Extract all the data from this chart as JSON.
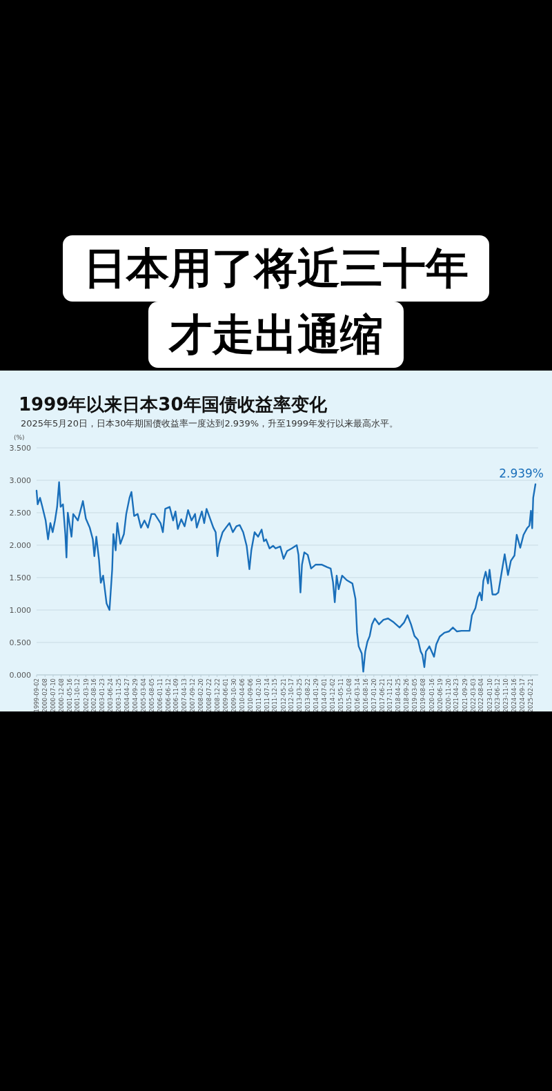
{
  "chart_data": {
    "type": "line",
    "title": "1999年以来日本30年国债收益率变化",
    "subtitle": "2025年5月20日，日本30年期国债收益率一度达到2.939%，升至1999年发行以来最高水平。",
    "ylabel": "(%)",
    "annotations": [
      "日本用了将近三十年",
      "才走出通缩",
      {
        "text": "2.939%",
        "x": "2025-05-20",
        "y": 2.939
      }
    ],
    "x": [
      "1999-09-02",
      "1999-09-23",
      "1999-11-06",
      "1999-12-20",
      "2000-02-20",
      "2000-04-05",
      "2000-05-19",
      "2000-07-01",
      "2000-08-14",
      "2000-09-23",
      "2000-10-30",
      "2000-11-28",
      "2001-01-11",
      "2001-02-24",
      "2001-03-18",
      "2001-04-12",
      "2001-06-21",
      "2001-07-23",
      "2001-10-19",
      "2002-01-22",
      "2002-03-18",
      "2002-05-30",
      "2002-07-27",
      "2002-08-25",
      "2002-10-01",
      "2002-11-21",
      "2002-12-24",
      "2003-02-06",
      "2003-04-12",
      "2003-06-06",
      "2003-07-27",
      "2003-08-18",
      "2003-10-01",
      "2003-10-30",
      "2003-12-27",
      "2004-03-03",
      "2004-04-16",
      "2004-06-17",
      "2004-07-23",
      "2004-09-12",
      "2004-11-17",
      "2005-01-18",
      "2005-03-25",
      "2005-05-30",
      "2005-08-03",
      "2005-10-04",
      "2006-01-22",
      "2006-03-07",
      "2006-04-20",
      "2006-07-12",
      "2006-09-16",
      "2006-10-30",
      "2006-12-13",
      "2007-02-16",
      "2007-04-20",
      "2007-06-24",
      "2007-08-29",
      "2007-11-03",
      "2007-12-05",
      "2008-03-10",
      "2008-04-23",
      "2008-06-06",
      "2008-08-11",
      "2008-10-12",
      "2008-11-25",
      "2008-12-27",
      "2009-01-29",
      "2009-04-05",
      "2009-06-06",
      "2009-08-11",
      "2009-10-15",
      "2009-12-20",
      "2010-02-20",
      "2010-04-27",
      "2010-07-01",
      "2010-08-22",
      "2010-09-27",
      "2010-11-28",
      "2011-02-02",
      "2011-04-09",
      "2011-05-22",
      "2011-07-01",
      "2011-09-05",
      "2011-11-10",
      "2011-12-27",
      "2012-03-25",
      "2012-05-26",
      "2012-07-31",
      "2012-10-26",
      "2013-01-29",
      "2013-03-03",
      "2013-04-09",
      "2013-05-08",
      "2013-06-21",
      "2013-08-25",
      "2013-10-26",
      "2014-01-22",
      "2014-05-11",
      "2014-08-25",
      "2014-10-30",
      "2014-12-13",
      "2015-01-15",
      "2015-02-20",
      "2015-03-29",
      "2015-06-02",
      "2015-08-29",
      "2015-12-13",
      "2016-02-09",
      "2016-03-10",
      "2016-04-09",
      "2016-06-06",
      "2016-07-05",
      "2016-08-11",
      "2016-09-20",
      "2016-11-03",
      "2016-12-16",
      "2017-02-06",
      "2017-04-27",
      "2017-07-20",
      "2017-10-15",
      "2018-01-29",
      "2018-05-19",
      "2018-08-14",
      "2018-10-15",
      "2018-12-20",
      "2019-02-24",
      "2019-04-30",
      "2019-06-21",
      "2019-07-23",
      "2019-08-29",
      "2019-09-27",
      "2019-12-02",
      "2020-01-15",
      "2020-02-27",
      "2020-04-09",
      "2020-06-13",
      "2020-09-09",
      "2020-12-02",
      "2021-02-16",
      "2021-05-04",
      "2021-07-27",
      "2021-10-23",
      "2021-12-27",
      "2022-02-09",
      "2022-04-16",
      "2022-05-30",
      "2022-07-09",
      "2022-08-14",
      "2022-09-12",
      "2022-10-26",
      "2022-12-09",
      "2023-01-07",
      "2023-03-03",
      "2023-05-08",
      "2023-06-21",
      "2023-08-25",
      "2023-10-19",
      "2023-12-20",
      "2024-02-13",
      "2024-04-20",
      "2024-06-02",
      "2024-08-07",
      "2024-10-08",
      "2024-12-13",
      "2025-01-26",
      "2025-02-24",
      "2025-03-20",
      "2025-04-08",
      "2025-05-20"
    ],
    "series": [
      {
        "color": "#1a6fba",
        "values": [
          2.84,
          2.63,
          2.73,
          2.59,
          2.38,
          2.09,
          2.34,
          2.2,
          2.38,
          2.59,
          2.97,
          2.59,
          2.63,
          2.17,
          1.81,
          2.5,
          2.13,
          2.48,
          2.38,
          2.68,
          2.41,
          2.27,
          2.09,
          1.83,
          2.13,
          1.77,
          1.42,
          1.53,
          1.1,
          1.0,
          1.63,
          2.17,
          1.92,
          2.34,
          2.02,
          2.17,
          2.48,
          2.73,
          2.82,
          2.45,
          2.48,
          2.27,
          2.38,
          2.27,
          2.48,
          2.48,
          2.34,
          2.2,
          2.56,
          2.59,
          2.38,
          2.52,
          2.25,
          2.4,
          2.29,
          2.54,
          2.38,
          2.48,
          2.27,
          2.52,
          2.34,
          2.56,
          2.41,
          2.27,
          2.2,
          1.83,
          2.02,
          2.2,
          2.27,
          2.34,
          2.2,
          2.29,
          2.31,
          2.2,
          1.99,
          1.63,
          1.92,
          2.2,
          2.13,
          2.24,
          2.06,
          2.09,
          1.95,
          1.99,
          1.95,
          1.98,
          1.79,
          1.91,
          1.95,
          2.0,
          1.85,
          1.27,
          1.7,
          1.89,
          1.85,
          1.64,
          1.7,
          1.7,
          1.66,
          1.64,
          1.43,
          1.12,
          1.53,
          1.32,
          1.53,
          1.46,
          1.41,
          1.17,
          0.65,
          0.44,
          0.33,
          0.05,
          0.36,
          0.51,
          0.6,
          0.78,
          0.87,
          0.78,
          0.85,
          0.87,
          0.81,
          0.73,
          0.81,
          0.92,
          0.78,
          0.6,
          0.54,
          0.36,
          0.31,
          0.12,
          0.36,
          0.44,
          0.36,
          0.28,
          0.47,
          0.59,
          0.65,
          0.67,
          0.73,
          0.67,
          0.68,
          0.68,
          0.68,
          0.92,
          1.03,
          1.2,
          1.27,
          1.15,
          1.45,
          1.59,
          1.41,
          1.62,
          1.24,
          1.24,
          1.27,
          1.59,
          1.86,
          1.54,
          1.76,
          1.84,
          2.16,
          1.96,
          2.16,
          2.26,
          2.3,
          2.53,
          2.26,
          2.73,
          2.939
        ]
      }
    ],
    "xlim": [
      "1999-09-02",
      "2025-05-20"
    ],
    "xticks": [
      "1999-09-02",
      "2000-02-08",
      "2000-07-10",
      "2000-12-08",
      "2001-05-16",
      "2001-10-12",
      "2002-03-19",
      "2002-08-16",
      "2003-01-23",
      "2003-06-24",
      "2003-11-25",
      "2004-04-27",
      "2004-09-29",
      "2005-03-04",
      "2005-08-05",
      "2006-01-11",
      "2006-06-12",
      "2006-11-09",
      "2007-04-13",
      "2007-09-12",
      "2008-02-20",
      "2008-07-22",
      "2008-12-22",
      "2009-06-01",
      "2009-10-30",
      "2010-04-06",
      "2010-09-06",
      "2011-02-10",
      "2011-07-14",
      "2011-12-15",
      "2012-05-21",
      "2012-10-17",
      "2013-03-25",
      "2013-08-22",
      "2014-01-29",
      "2014-07-01",
      "2014-12-02",
      "2015-05-11",
      "2015-10-08",
      "2016-03-14",
      "2016-08-16",
      "2017-01-20",
      "2017-06-21",
      "2017-11-21",
      "2018-04-25",
      "2018-09-26",
      "2019-03-05",
      "2019-08-08",
      "2020-01-16",
      "2020-06-19",
      "2020-11-20",
      "2021-04-23",
      "2021-09-29",
      "2022-03-03",
      "2022-08-04",
      "2023-01-10",
      "2023-06-12",
      "2023-11-10",
      "2024-04-16",
      "2024-09-17",
      "2025-02-21"
    ],
    "ylim": [
      0,
      3.5
    ],
    "yticks": [
      {
        "value": 0,
        "label": "0.000"
      },
      {
        "value": 0.5,
        "label": "0.500"
      },
      {
        "value": 1,
        "label": "1.000"
      },
      {
        "value": 1.5,
        "label": "1.500"
      },
      {
        "value": 2,
        "label": "2.000"
      },
      {
        "value": 2.5,
        "label": "2.500"
      },
      {
        "value": 3,
        "label": "3.000"
      },
      {
        "value": 3.5,
        "label": "3.500"
      }
    ],
    "grid": "y"
  }
}
